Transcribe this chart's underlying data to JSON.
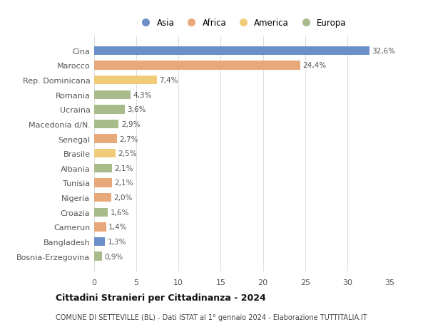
{
  "countries": [
    "Cina",
    "Marocco",
    "Rep. Dominicana",
    "Romania",
    "Ucraina",
    "Macedonia d/N.",
    "Senegal",
    "Brasile",
    "Albania",
    "Tunisia",
    "Nigeria",
    "Croazia",
    "Camerun",
    "Bangladesh",
    "Bosnia-Erzegovina"
  ],
  "values": [
    32.6,
    24.4,
    7.4,
    4.3,
    3.6,
    2.9,
    2.7,
    2.5,
    2.1,
    2.1,
    2.0,
    1.6,
    1.4,
    1.3,
    0.9
  ],
  "labels": [
    "32,6%",
    "24,4%",
    "7,4%",
    "4,3%",
    "3,6%",
    "2,9%",
    "2,7%",
    "2,5%",
    "2,1%",
    "2,1%",
    "2,0%",
    "1,6%",
    "1,4%",
    "1,3%",
    "0,9%"
  ],
  "continents": [
    "Asia",
    "Africa",
    "America",
    "Europa",
    "Europa",
    "Europa",
    "Africa",
    "America",
    "Europa",
    "Africa",
    "Africa",
    "Europa",
    "Africa",
    "Asia",
    "Europa"
  ],
  "colors": {
    "Asia": "#6b8fc8",
    "Africa": "#e8a97a",
    "America": "#f0cc7a",
    "Europa": "#a8bb8a"
  },
  "legend_order": [
    "Asia",
    "Africa",
    "America",
    "Europa"
  ],
  "xlim": [
    0,
    35
  ],
  "xticks": [
    0,
    5,
    10,
    15,
    20,
    25,
    30,
    35
  ],
  "title": "Cittadini Stranieri per Cittadinanza - 2024",
  "subtitle": "COMUNE DI SETTEVILLE (BL) - Dati ISTAT al 1° gennaio 2024 - Elaborazione TUTTITALIA.IT",
  "background_color": "#ffffff",
  "grid_color": "#dddddd",
  "bar_height": 0.6
}
